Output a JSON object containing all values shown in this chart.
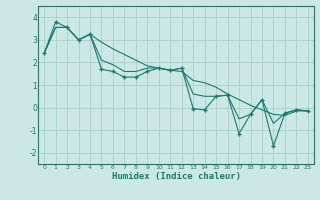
{
  "xlabel": "Humidex (Indice chaleur)",
  "x": [
    0,
    1,
    2,
    3,
    4,
    5,
    6,
    7,
    8,
    9,
    10,
    11,
    12,
    13,
    14,
    15,
    16,
    17,
    18,
    19,
    20,
    21,
    22,
    23
  ],
  "y_main": [
    2.4,
    3.8,
    3.55,
    3.0,
    3.25,
    1.7,
    1.6,
    1.35,
    1.35,
    1.6,
    1.75,
    1.65,
    1.75,
    -0.05,
    -0.1,
    0.5,
    0.55,
    -1.15,
    -0.3,
    0.35,
    -1.7,
    -0.25,
    -0.1,
    -0.15
  ],
  "y_trend": [
    2.4,
    3.55,
    3.55,
    3.0,
    3.25,
    2.9,
    2.6,
    2.35,
    2.1,
    1.85,
    1.75,
    1.65,
    1.6,
    1.2,
    1.1,
    0.9,
    0.6,
    0.35,
    0.1,
    -0.1,
    -0.3,
    -0.35,
    -0.15,
    -0.15
  ],
  "y_smooth": [
    2.4,
    3.55,
    3.55,
    3.0,
    3.25,
    2.1,
    1.9,
    1.6,
    1.6,
    1.75,
    1.75,
    1.65,
    1.75,
    0.6,
    0.5,
    0.5,
    0.55,
    -0.5,
    -0.3,
    0.35,
    -0.7,
    -0.25,
    -0.1,
    -0.15
  ],
  "line_color": "#1a7a6e",
  "marker": "+",
  "bg_color": "#cce8e4",
  "grid_color": "#a0ccca",
  "ylim": [
    -2.5,
    4.5
  ],
  "xlim": [
    -0.5,
    23.5
  ],
  "yticks": [
    -2,
    -1,
    0,
    1,
    2,
    3,
    4
  ],
  "xticks": [
    0,
    1,
    2,
    3,
    4,
    5,
    6,
    7,
    8,
    9,
    10,
    11,
    12,
    13,
    14,
    15,
    16,
    17,
    18,
    19,
    20,
    21,
    22,
    23
  ]
}
